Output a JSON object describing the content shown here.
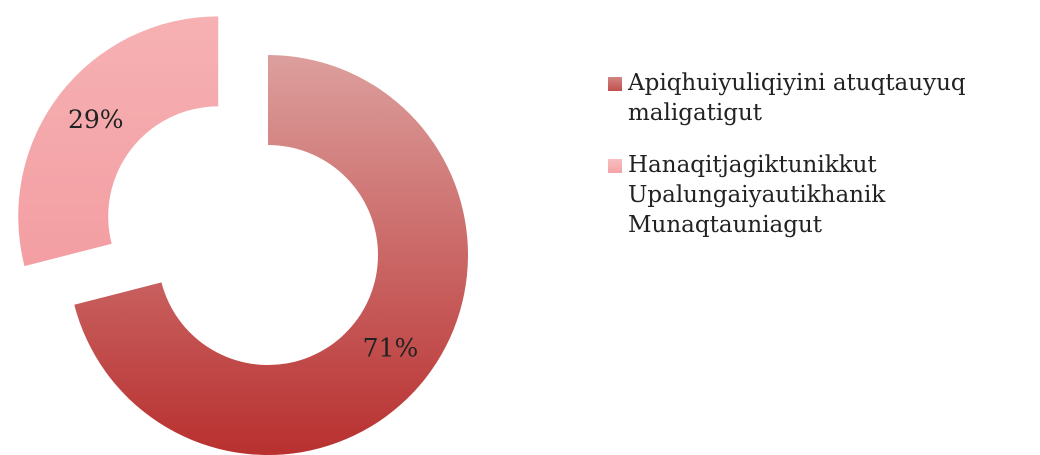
{
  "chart_data": {
    "type": "donut",
    "categories": [
      "Apiqhuiyuliqiyini atuqtauyuq maligatigut",
      "Hanaqitjagiktunikkut Upalungaiyautikhanik Munaqtauniagut"
    ],
    "values": [
      71,
      29
    ],
    "value_labels": [
      "71%",
      "29%"
    ],
    "colors": [
      "#c0504d",
      "#f4a3a6"
    ],
    "exploded": [
      false,
      true
    ],
    "legend": "right"
  }
}
